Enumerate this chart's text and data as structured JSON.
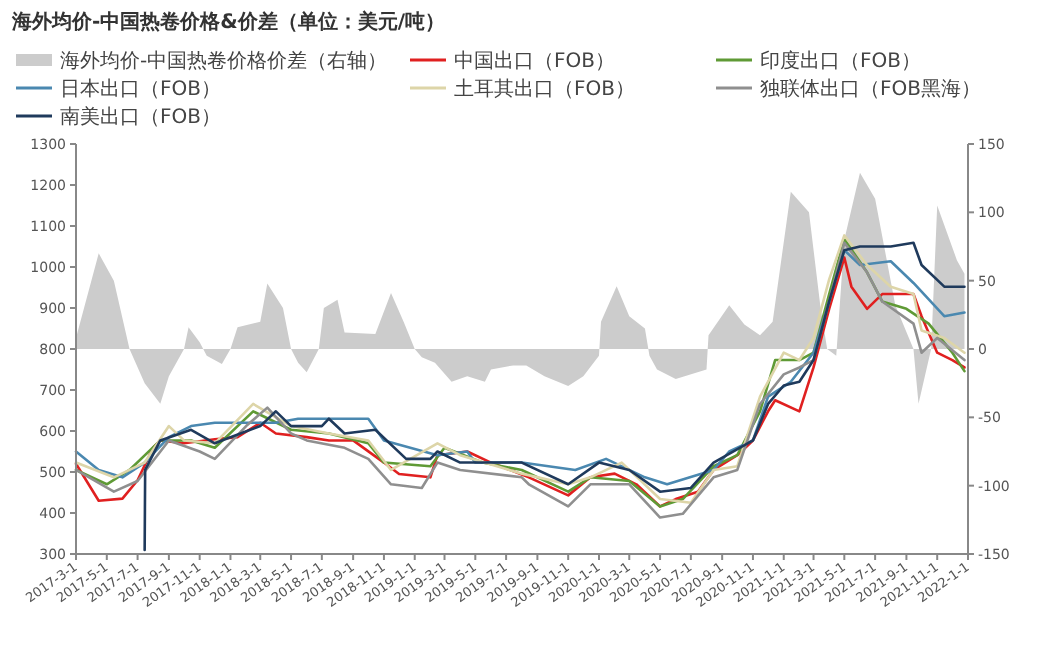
{
  "chart_data": {
    "type": "line",
    "title": "海外均价-中国热卷价格&价差（单位：美元/吨）",
    "legend": "top",
    "ylim": [
      300,
      1300
    ],
    "yticks": [
      300,
      400,
      500,
      600,
      700,
      800,
      900,
      1000,
      1100,
      1200,
      1300
    ],
    "y2lim": [
      -150,
      150
    ],
    "y2ticks": [
      -150,
      -100,
      -50,
      0,
      50,
      100,
      150
    ],
    "xlim": [
      "2017-03-01",
      "2022-01-01"
    ],
    "xticks": [
      {
        "value": "2017-03-01",
        "label": "2017-3-1"
      },
      {
        "value": "2017-05-01",
        "label": "2017-5-1"
      },
      {
        "value": "2017-07-01",
        "label": "2017-7-1"
      },
      {
        "value": "2017-09-01",
        "label": "2017-9-1"
      },
      {
        "value": "2017-11-01",
        "label": "2017-11-1"
      },
      {
        "value": "2018-01-01",
        "label": "2018-1-1"
      },
      {
        "value": "2018-03-01",
        "label": "2018-3-1"
      },
      {
        "value": "2018-05-01",
        "label": "2018-5-1"
      },
      {
        "value": "2018-07-01",
        "label": "2018-7-1"
      },
      {
        "value": "2018-09-01",
        "label": "2018-9-1"
      },
      {
        "value": "2018-11-01",
        "label": "2018-11-1"
      },
      {
        "value": "2019-01-01",
        "label": "2019-1-1"
      },
      {
        "value": "2019-03-01",
        "label": "2019-3-1"
      },
      {
        "value": "2019-05-01",
        "label": "2019-5-1"
      },
      {
        "value": "2019-07-01",
        "label": "2019-7-1"
      },
      {
        "value": "2019-09-01",
        "label": "2019-9-1"
      },
      {
        "value": "2019-11-01",
        "label": "2019-11-1"
      },
      {
        "value": "2020-01-01",
        "label": "2020-1-1"
      },
      {
        "value": "2020-03-01",
        "label": "2020-3-1"
      },
      {
        "value": "2020-05-01",
        "label": "2020-5-1"
      },
      {
        "value": "2020-07-01",
        "label": "2020-7-1"
      },
      {
        "value": "2020-09-01",
        "label": "2020-9-1"
      },
      {
        "value": "2020-11-01",
        "label": "2020-11-1"
      },
      {
        "value": "2021-01-01",
        "label": "2021-1-1"
      },
      {
        "value": "2021-03-01",
        "label": "2021-3-1"
      },
      {
        "value": "2021-05-01",
        "label": "2021-5-1"
      },
      {
        "value": "2021-07-01",
        "label": "2021-7-1"
      },
      {
        "value": "2021-09-01",
        "label": "2021-9-1"
      },
      {
        "value": "2021-11-01",
        "label": "2021-11-1"
      },
      {
        "value": "2022-01-01",
        "label": "2022-1-1"
      }
    ],
    "series": [
      {
        "name": "海外均价-中国热卷价格价差（右轴）",
        "type": "area",
        "axis": "y2",
        "color": "#cccccc",
        "x": [
          "2017-03-01",
          "2017-04-15",
          "2017-05-15",
          "2017-06-15",
          "2017-07-15",
          "2017-08-15",
          "2017-09-01",
          "2017-10-01",
          "2017-10-10",
          "2017-11-01",
          "2017-11-15",
          "2017-12-15",
          "2018-01-01",
          "2018-01-15",
          "2018-03-01",
          "2018-03-15",
          "2018-04-15",
          "2018-05-01",
          "2018-05-15",
          "2018-06-01",
          "2018-06-25",
          "2018-07-05",
          "2018-08-01",
          "2018-08-15",
          "2018-10-15",
          "2018-11-15",
          "2018-12-10",
          "2019-01-01",
          "2019-01-15",
          "2019-02-10",
          "2019-03-15",
          "2019-04-15",
          "2019-05-20",
          "2019-06-01",
          "2019-07-15",
          "2019-08-10",
          "2019-09-15",
          "2019-11-01",
          "2019-12-01",
          "2020-01-01",
          "2020-01-05",
          "2020-02-05",
          "2020-03-01",
          "2020-04-01",
          "2020-04-10",
          "2020-04-25",
          "2020-06-01",
          "2020-08-01",
          "2020-08-05",
          "2020-09-15",
          "2020-10-15",
          "2020-11-15",
          "2020-12-10",
          "2021-01-15",
          "2021-02-20",
          "2021-03-15",
          "2021-03-28",
          "2021-04-15",
          "2021-05-01",
          "2021-06-01",
          "2021-07-01",
          "2021-08-10",
          "2021-09-15",
          "2021-09-25",
          "2021-10-20",
          "2021-11-01",
          "2021-12-10",
          "2021-12-25"
        ],
        "values": [
          8,
          70,
          50,
          0,
          -25,
          -40,
          -20,
          0,
          16,
          5,
          -5,
          -11,
          0,
          16,
          20,
          48,
          30,
          0,
          -10,
          -17,
          0,
          30,
          36,
          12,
          11,
          41,
          20,
          0,
          -6,
          -10,
          -24,
          -20,
          -24,
          -15,
          -12,
          -12,
          -20,
          -27,
          -20,
          -5,
          20,
          46,
          24,
          15,
          -5,
          -15,
          -22,
          -15,
          10,
          32,
          18,
          10,
          20,
          115,
          100,
          30,
          0,
          -5,
          80,
          129,
          110,
          32,
          0,
          -40,
          0,
          105,
          65,
          55
        ]
      },
      {
        "name": "中国出口（FOB）",
        "color": "#e02020",
        "x": [
          "2017-03-01",
          "2017-04-15",
          "2017-06-01",
          "2017-07-01",
          "2017-08-01",
          "2017-08-15",
          "2017-10-01",
          "2017-12-01",
          "2018-01-15",
          "2018-03-01",
          "2018-04-01",
          "2018-06-01",
          "2018-07-15",
          "2018-09-01",
          "2018-11-01",
          "2018-12-01",
          "2019-02-01",
          "2019-02-15",
          "2019-04-15",
          "2019-06-01",
          "2019-08-15",
          "2019-11-01",
          "2019-12-15",
          "2020-02-01",
          "2020-03-15",
          "2020-05-01",
          "2020-06-01",
          "2020-07-15",
          "2020-08-15",
          "2020-10-01",
          "2020-11-01",
          "2020-12-01",
          "2020-12-15",
          "2021-02-01",
          "2021-03-01",
          "2021-04-01",
          "2021-05-01",
          "2021-05-15",
          "2021-06-15",
          "2021-07-15",
          "2021-09-15",
          "2021-10-01",
          "2021-11-01",
          "2021-12-01",
          "2021-12-25"
        ],
        "values": [
          520,
          430,
          435,
          480,
          560,
          577,
          570,
          580,
          585,
          620,
          594,
          585,
          577,
          577,
          523,
          495,
          487,
          541,
          550,
          523,
          487,
          443,
          487,
          496,
          470,
          416,
          434,
          452,
          505,
          541,
          577,
          648,
          675,
          648,
          755,
          898,
          1023,
          952,
          898,
          934,
          934,
          880,
          791,
          773,
          755
        ]
      },
      {
        "name": "印度出口（FOB）",
        "color": "#5f9a35",
        "x": [
          "2017-03-01",
          "2017-05-01",
          "2017-06-15",
          "2017-08-15",
          "2017-10-15",
          "2017-12-01",
          "2018-02-15",
          "2018-05-01",
          "2018-07-15",
          "2018-10-01",
          "2018-11-01",
          "2019-02-01",
          "2019-03-01",
          "2019-05-15",
          "2019-08-01",
          "2019-11-01",
          "2019-12-15",
          "2020-03-01",
          "2020-05-01",
          "2020-06-15",
          "2020-08-15",
          "2020-10-01",
          "2020-11-15",
          "2020-12-15",
          "2021-02-01",
          "2021-03-01",
          "2021-04-01",
          "2021-05-01",
          "2021-06-15",
          "2021-07-15",
          "2021-09-01",
          "2021-10-15",
          "2021-12-01",
          "2021-12-25"
        ],
        "values": [
          505,
          470,
          505,
          577,
          577,
          559,
          648,
          603,
          594,
          570,
          523,
          514,
          559,
          523,
          505,
          452,
          487,
          478,
          416,
          434,
          514,
          541,
          648,
          773,
          773,
          791,
          934,
          1068,
          987,
          916,
          898,
          862,
          791,
          746
        ]
      },
      {
        "name": "日本出口（FOB）",
        "color": "#4a88b0",
        "x": [
          "2017-03-01",
          "2017-04-15",
          "2017-06-01",
          "2017-07-15",
          "2017-09-01",
          "2017-10-15",
          "2017-12-01",
          "2018-04-01",
          "2018-05-15",
          "2018-10-01",
          "2018-11-01",
          "2019-02-15",
          "2019-04-15",
          "2019-05-01",
          "2019-08-01",
          "2019-11-15",
          "2020-01-15",
          "2020-04-01",
          "2020-05-15",
          "2020-08-15",
          "2020-09-15",
          "2020-11-01",
          "2020-12-01",
          "2021-01-15",
          "2021-03-01",
          "2021-04-01",
          "2021-05-01",
          "2021-06-01",
          "2021-08-01",
          "2021-09-15",
          "2021-11-15",
          "2021-12-25"
        ],
        "values": [
          550,
          505,
          487,
          523,
          585,
          612,
          620,
          620,
          630,
          630,
          577,
          541,
          550,
          523,
          523,
          505,
          532,
          487,
          470,
          505,
          550,
          577,
          684,
          720,
          791,
          916,
          1041,
          1005,
          1014,
          961,
          880,
          889
        ]
      },
      {
        "name": "土耳其出口（FOB）",
        "color": "#ddd5a8",
        "x": [
          "2017-03-01",
          "2017-05-15",
          "2017-07-15",
          "2017-09-01",
          "2017-10-01",
          "2017-12-01",
          "2018-02-15",
          "2018-05-01",
          "2018-07-15",
          "2018-10-01",
          "2018-11-15",
          "2019-02-15",
          "2019-04-01",
          "2019-08-01",
          "2019-11-01",
          "2019-12-15",
          "2020-02-15",
          "2020-05-01",
          "2020-07-01",
          "2020-08-15",
          "2020-10-01",
          "2020-11-15",
          "2021-01-01",
          "2021-02-01",
          "2021-03-01",
          "2021-04-01",
          "2021-05-01",
          "2021-06-15",
          "2021-08-01",
          "2021-09-15",
          "2021-10-01",
          "2021-11-15",
          "2021-12-25"
        ],
        "values": [
          523,
          487,
          523,
          612,
          577,
          570,
          666,
          612,
          594,
          577,
          505,
          570,
          541,
          496,
          470,
          487,
          523,
          434,
          425,
          505,
          514,
          684,
          791,
          773,
          827,
          970,
          1077,
          1005,
          952,
          934,
          845,
          827,
          791
        ]
      },
      {
        "name": "独联体出口（FOB黑海）",
        "color": "#8f8f8f",
        "x": [
          "2017-03-01",
          "2017-05-15",
          "2017-07-01",
          "2017-09-01",
          "2017-11-01",
          "2017-12-01",
          "2018-02-01",
          "2018-03-15",
          "2018-05-01",
          "2018-06-01",
          "2018-08-15",
          "2018-10-01",
          "2018-11-15",
          "2019-01-15",
          "2019-02-15",
          "2019-04-01",
          "2019-08-01",
          "2019-08-15",
          "2019-11-01",
          "2019-12-15",
          "2020-03-01",
          "2020-05-01",
          "2020-06-15",
          "2020-08-15",
          "2020-10-01",
          "2020-11-15",
          "2021-01-01",
          "2021-02-01",
          "2021-03-01",
          "2021-04-01",
          "2021-05-01",
          "2021-06-15",
          "2021-07-15",
          "2021-09-15",
          "2021-10-01",
          "2021-11-01",
          "2021-12-25"
        ],
        "values": [
          505,
          452,
          478,
          577,
          550,
          532,
          612,
          657,
          594,
          577,
          559,
          532,
          470,
          461,
          523,
          505,
          487,
          470,
          416,
          470,
          470,
          389,
          398,
          487,
          505,
          666,
          738,
          755,
          773,
          916,
          1059,
          987,
          916,
          862,
          791,
          827,
          773
        ]
      },
      {
        "name": "南美出口（FOB）",
        "color": "#1f3a5c",
        "x": [
          "2017-07-15",
          "2017-07-16",
          "2017-08-15",
          "2017-10-15",
          "2017-12-01",
          "2017-12-15",
          "2018-03-01",
          "2018-04-01",
          "2018-05-01",
          "2018-07-01",
          "2018-07-15",
          "2018-08-15",
          "2018-10-15",
          "2018-12-15",
          "2019-02-01",
          "2019-02-15",
          "2019-04-01",
          "2019-08-01",
          "2019-11-01",
          "2020-01-01",
          "2020-03-01",
          "2020-05-01",
          "2020-07-01",
          "2020-08-15",
          "2020-11-01",
          "2020-12-01",
          "2021-01-01",
          "2021-02-01",
          "2021-03-01",
          "2021-04-01",
          "2021-05-01",
          "2021-06-01",
          "2021-08-01",
          "2021-09-15",
          "2021-10-01",
          "2021-11-15",
          "2021-12-25"
        ],
        "values": [
          310,
          505,
          577,
          603,
          570,
          577,
          612,
          648,
          612,
          612,
          630,
          594,
          603,
          532,
          532,
          550,
          523,
          523,
          470,
          523,
          505,
          452,
          461,
          523,
          577,
          666,
          711,
          720,
          773,
          916,
          1041,
          1050,
          1050,
          1059,
          1005,
          952,
          952
        ]
      }
    ]
  }
}
